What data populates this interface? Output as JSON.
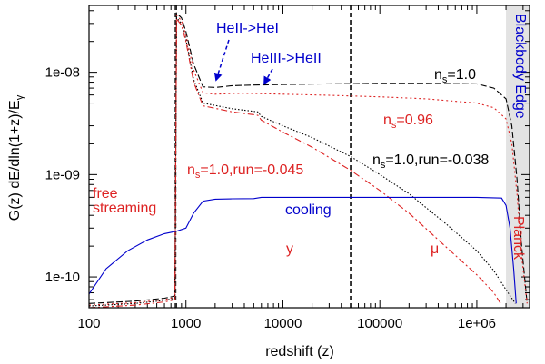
{
  "chart_data": {
    "type": "line",
    "xlabel": "redshift (z)",
    "ylabel": "G(z) dE/dln(1+z)/E",
    "ylabel_subscript": "γ",
    "xscale": "log",
    "yscale": "log",
    "xlim": [
      100,
      3500000
    ],
    "ylim": [
      5e-11,
      4.5e-08
    ],
    "x_ticks": [
      {
        "value": 100,
        "label": "100"
      },
      {
        "value": 1000,
        "label": "1000"
      },
      {
        "value": 10000,
        "label": "10000"
      },
      {
        "value": 100000,
        "label": "100000"
      },
      {
        "value": 1000000,
        "label": "1e+06"
      }
    ],
    "y_ticks": [
      {
        "value": 1e-10,
        "label": "1e-10"
      },
      {
        "value": 1e-09,
        "label": "1e-09"
      },
      {
        "value": 1e-08,
        "label": "1e-08"
      }
    ],
    "vertical_lines": [
      780,
      50000
    ],
    "shaded_region": [
      2000000,
      3500000
    ],
    "series": [
      {
        "name": "ns=1.0",
        "color": "#000000",
        "dash": "dashed",
        "points": [
          [
            100,
            5.5e-11
          ],
          [
            300,
            5.8e-11
          ],
          [
            600,
            6.2e-11
          ],
          [
            770,
            6.5e-11
          ],
          [
            800,
            3.8e-08
          ],
          [
            900,
            3.4e-08
          ],
          [
            1000,
            2.5e-08
          ],
          [
            1200,
            1.2e-08
          ],
          [
            1500,
            7.2e-09
          ],
          [
            2000,
            7.1e-09
          ],
          [
            3000,
            7.4e-09
          ],
          [
            5000,
            7.5e-09
          ],
          [
            10000,
            7.6e-09
          ],
          [
            30000,
            7.7e-09
          ],
          [
            100000,
            7.8e-09
          ],
          [
            300000,
            7.8e-09
          ],
          [
            1000000,
            7.7e-09
          ],
          [
            1500000,
            7e-09
          ],
          [
            2000000,
            5.5e-09
          ],
          [
            2300000,
            3e-09
          ],
          [
            2600000,
            9e-10
          ],
          [
            2900000,
            2e-10
          ],
          [
            3300000,
            5.5e-11
          ]
        ]
      },
      {
        "name": "ns=0.96",
        "color": "#dd2222",
        "dash": "dotted",
        "points": [
          [
            100,
            5.3e-11
          ],
          [
            300,
            5.6e-11
          ],
          [
            600,
            6e-11
          ],
          [
            770,
            6.3e-11
          ],
          [
            800,
            3.6e-08
          ],
          [
            900,
            3.2e-08
          ],
          [
            1000,
            2.3e-08
          ],
          [
            1200,
            1.05e-08
          ],
          [
            1500,
            6.3e-09
          ],
          [
            2000,
            6.1e-09
          ],
          [
            3000,
            6.2e-09
          ],
          [
            5000,
            6.2e-09
          ],
          [
            10000,
            6.1e-09
          ],
          [
            30000,
            5.95e-09
          ],
          [
            100000,
            5.75e-09
          ],
          [
            300000,
            5.5e-09
          ],
          [
            1000000,
            5e-09
          ],
          [
            1500000,
            4.5e-09
          ],
          [
            2000000,
            3.5e-09
          ],
          [
            2300000,
            2e-09
          ],
          [
            2600000,
            6.5e-10
          ],
          [
            2900000,
            1.6e-10
          ],
          [
            3300000,
            5.5e-11
          ]
        ]
      },
      {
        "name": "ns=1.0,run=-0.038",
        "color": "#000000",
        "dash": "finedot",
        "points": [
          [
            100,
            5.2e-11
          ],
          [
            300,
            5.5e-11
          ],
          [
            600,
            5.9e-11
          ],
          [
            770,
            6.2e-11
          ],
          [
            800,
            3.4e-08
          ],
          [
            900,
            3e-08
          ],
          [
            1000,
            2.1e-08
          ],
          [
            1200,
            8.5e-09
          ],
          [
            1500,
            5e-09
          ],
          [
            3000,
            4.4e-09
          ],
          [
            5500,
            4.1e-09
          ],
          [
            6000,
            3.7e-09
          ],
          [
            10000,
            3e-09
          ],
          [
            20000,
            2.3e-09
          ],
          [
            50000,
            1.5e-09
          ],
          [
            100000,
            1e-09
          ],
          [
            200000,
            6.5e-10
          ],
          [
            500000,
            3.2e-10
          ],
          [
            1000000,
            1.8e-10
          ],
          [
            1500000,
            1.15e-10
          ],
          [
            2000000,
            7.5e-11
          ],
          [
            2500000,
            5.5e-11
          ]
        ]
      },
      {
        "name": "ns=1.0,run=-0.045",
        "color": "#dd2222",
        "dash": "dashdot",
        "points": [
          [
            100,
            5e-11
          ],
          [
            300,
            5.3e-11
          ],
          [
            600,
            5.7e-11
          ],
          [
            770,
            6e-11
          ],
          [
            800,
            3.3e-08
          ],
          [
            900,
            2.9e-08
          ],
          [
            1000,
            2e-08
          ],
          [
            1200,
            8e-09
          ],
          [
            1500,
            4.7e-09
          ],
          [
            3000,
            4.1e-09
          ],
          [
            5500,
            3.8e-09
          ],
          [
            6000,
            3.4e-09
          ],
          [
            10000,
            2.6e-09
          ],
          [
            20000,
            1.85e-09
          ],
          [
            50000,
            1.1e-09
          ],
          [
            100000,
            7e-10
          ],
          [
            200000,
            4.2e-10
          ],
          [
            500000,
            1.9e-10
          ],
          [
            1000000,
            1.05e-10
          ],
          [
            1500000,
            7e-11
          ],
          [
            1800000,
            5.3e-11
          ]
        ]
      },
      {
        "name": "cooling",
        "color": "#0000cc",
        "dash": "solid",
        "points": [
          [
            100,
            6.8e-11
          ],
          [
            150,
            1.2e-10
          ],
          [
            250,
            1.8e-10
          ],
          [
            400,
            2.3e-10
          ],
          [
            600,
            2.65e-10
          ],
          [
            800,
            2.8e-10
          ],
          [
            1000,
            3e-10
          ],
          [
            1200,
            4.2e-10
          ],
          [
            1500,
            5.5e-10
          ],
          [
            2000,
            5.75e-10
          ],
          [
            3000,
            5.8e-10
          ],
          [
            5000,
            5.82e-10
          ],
          [
            6000,
            6e-10
          ],
          [
            10000,
            6e-10
          ],
          [
            100000,
            6e-10
          ],
          [
            1000000,
            6e-10
          ],
          [
            1800000,
            5.9e-10
          ],
          [
            2000000,
            5e-10
          ],
          [
            2200000,
            3e-10
          ],
          [
            2400000,
            1.2e-10
          ],
          [
            2550000,
            5.5e-11
          ]
        ]
      }
    ],
    "annotations": {
      "heii_hei": "HeII->HeI",
      "heiii_heii": "HeIII->HeII",
      "free": "free",
      "streaming": "streaming",
      "cooling": "cooling",
      "y": "y",
      "mu": "μ",
      "blackbody": "Blackbody Edge",
      "planck": "Planck",
      "ns_prefix": "n",
      "ns_sub": "s",
      "ns10": "=1.0",
      "ns096": "=0.96",
      "run038": "=1.0,run=-0.038",
      "run045": "=1.0,run=-0.045"
    }
  }
}
